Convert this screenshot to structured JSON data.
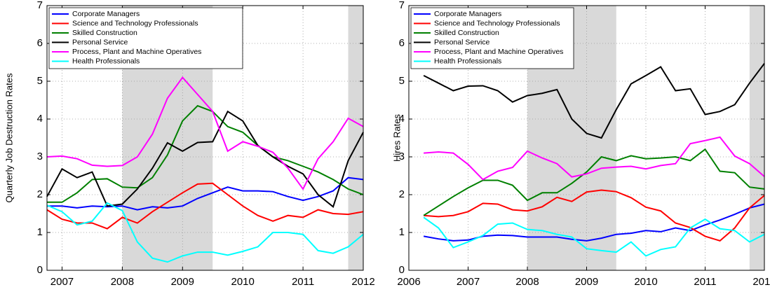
{
  "chart_data": [
    {
      "type": "line",
      "ylabel": "Quarterly Job Destruction Rates",
      "x": [
        2006.75,
        2007,
        2007.25,
        2007.5,
        2007.75,
        2008,
        2008.25,
        2008.5,
        2008.75,
        2009,
        2009.25,
        2009.5,
        2009.75,
        2010,
        2010.25,
        2010.5,
        2010.75,
        2011,
        2011.25,
        2011.5,
        2011.75,
        2012
      ],
      "xlim": [
        2006.75,
        2012
      ],
      "ylim": [
        0,
        7
      ],
      "xticks": [
        2007,
        2008,
        2009,
        2010,
        2011,
        2012
      ],
      "yticks": [
        0,
        1,
        2,
        3,
        4,
        5,
        6,
        7
      ],
      "grid": true,
      "legend": "upper left",
      "shaded": [
        [
          2008,
          2009.5
        ],
        [
          2011.75,
          2012
        ]
      ],
      "series": [
        {
          "name": "Corporate Managers",
          "color": "#0000ff",
          "values": [
            1.7,
            1.7,
            1.65,
            1.7,
            1.68,
            1.7,
            1.6,
            1.68,
            1.65,
            1.7,
            1.9,
            2.05,
            2.2,
            2.1,
            2.1,
            2.08,
            1.95,
            1.85,
            1.95,
            2.1,
            2.45,
            2.4
          ]
        },
        {
          "name": "Science and Technology Professionals",
          "color": "#ff0000",
          "values": [
            1.6,
            1.35,
            1.25,
            1.25,
            1.1,
            1.4,
            1.25,
            1.55,
            1.8,
            2.05,
            2.28,
            2.3,
            2.0,
            1.7,
            1.45,
            1.3,
            1.45,
            1.4,
            1.6,
            1.5,
            1.48,
            1.55
          ]
        },
        {
          "name": "Skilled Construction",
          "color": "#008000",
          "values": [
            1.8,
            1.8,
            2.05,
            2.4,
            2.42,
            2.2,
            2.18,
            2.45,
            3.05,
            3.95,
            4.35,
            4.2,
            3.8,
            3.65,
            3.3,
            3.0,
            2.9,
            2.75,
            2.6,
            2.4,
            2.15,
            2.0
          ]
        },
        {
          "name": "Personal Service",
          "color": "#000000",
          "values": [
            1.95,
            2.68,
            2.45,
            2.6,
            1.7,
            1.75,
            2.15,
            2.7,
            3.37,
            3.15,
            3.38,
            3.4,
            4.2,
            3.95,
            3.3,
            3.0,
            2.75,
            2.55,
            2.0,
            1.68,
            2.9,
            3.65
          ]
        },
        {
          "name": "Process, Plant and Machine Operatives",
          "color": "#ff00ff",
          "values": [
            3.0,
            3.02,
            2.95,
            2.78,
            2.75,
            2.77,
            3.0,
            3.6,
            4.55,
            5.1,
            4.65,
            4.2,
            3.15,
            3.4,
            3.28,
            3.12,
            2.7,
            2.15,
            2.95,
            3.4,
            4.02,
            3.8
          ]
        },
        {
          "name": "Health Professionals",
          "color": "#00ffff",
          "values": [
            1.72,
            1.55,
            1.2,
            1.3,
            1.78,
            1.58,
            0.75,
            0.32,
            0.22,
            0.38,
            0.48,
            0.48,
            0.4,
            0.5,
            0.62,
            1.0,
            1.0,
            0.95,
            0.52,
            0.45,
            0.62,
            0.95
          ]
        }
      ]
    },
    {
      "type": "line",
      "ylabel": "Hires Rates",
      "x": [
        2006.25,
        2006.5,
        2006.75,
        2007,
        2007.25,
        2007.5,
        2007.75,
        2008,
        2008.25,
        2008.5,
        2008.75,
        2009,
        2009.25,
        2009.5,
        2009.75,
        2010,
        2010.25,
        2010.5,
        2010.75,
        2011,
        2011.25,
        2011.5,
        2011.75,
        2012
      ],
      "xlim": [
        2006,
        2012
      ],
      "ylim": [
        0,
        7
      ],
      "xticks": [
        2006,
        2007,
        2008,
        2009,
        2010,
        2011,
        2012
      ],
      "yticks": [
        0,
        1,
        2,
        3,
        4,
        5,
        6,
        7
      ],
      "grid": true,
      "legend": "upper left",
      "shaded": [
        [
          2008,
          2009.5
        ],
        [
          2011.75,
          2012
        ]
      ],
      "series": [
        {
          "name": "Corporate Managers",
          "color": "#0000ff",
          "values": [
            0.9,
            0.83,
            0.78,
            0.8,
            0.9,
            0.93,
            0.92,
            0.88,
            0.88,
            0.88,
            0.82,
            0.78,
            0.85,
            0.95,
            0.98,
            1.05,
            1.02,
            1.12,
            1.05,
            1.2,
            1.33,
            1.48,
            1.65,
            1.75
          ]
        },
        {
          "name": "Science and Technology Professionals",
          "color": "#ff0000",
          "values": [
            1.45,
            1.42,
            1.45,
            1.55,
            1.77,
            1.75,
            1.6,
            1.57,
            1.68,
            1.93,
            1.82,
            2.07,
            2.12,
            2.08,
            1.92,
            1.67,
            1.57,
            1.25,
            1.13,
            0.9,
            0.78,
            1.12,
            1.65,
            1.98
          ]
        },
        {
          "name": "Skilled Construction",
          "color": "#008000",
          "values": [
            1.45,
            1.7,
            1.95,
            2.18,
            2.38,
            2.38,
            2.25,
            1.85,
            2.05,
            2.05,
            2.3,
            2.6,
            3.0,
            2.9,
            3.03,
            2.95,
            2.97,
            3.0,
            2.9,
            3.2,
            2.62,
            2.58,
            2.2,
            2.15
          ]
        },
        {
          "name": "Personal Service",
          "color": "#000000",
          "values": [
            5.15,
            4.95,
            4.75,
            4.87,
            4.88,
            4.75,
            4.45,
            4.62,
            4.68,
            4.78,
            4.0,
            3.62,
            3.5,
            4.25,
            4.93,
            5.15,
            5.38,
            4.75,
            4.8,
            4.12,
            4.2,
            4.38,
            4.95,
            5.47
          ]
        },
        {
          "name": "Process, Plant and Machine Operatives",
          "color": "#ff00ff",
          "values": [
            3.1,
            3.13,
            3.1,
            2.8,
            2.4,
            2.62,
            2.72,
            3.15,
            2.97,
            2.82,
            2.47,
            2.55,
            2.7,
            2.73,
            2.75,
            2.68,
            2.77,
            2.82,
            3.35,
            3.43,
            3.52,
            3.02,
            2.82,
            2.48
          ]
        },
        {
          "name": "Health Professionals",
          "color": "#00ffff",
          "values": [
            1.4,
            1.12,
            0.6,
            0.75,
            0.92,
            1.22,
            1.25,
            1.08,
            1.05,
            0.95,
            0.88,
            0.57,
            0.52,
            0.48,
            0.75,
            0.38,
            0.55,
            0.62,
            1.12,
            1.35,
            1.1,
            1.05,
            0.75,
            0.95
          ]
        }
      ]
    }
  ]
}
